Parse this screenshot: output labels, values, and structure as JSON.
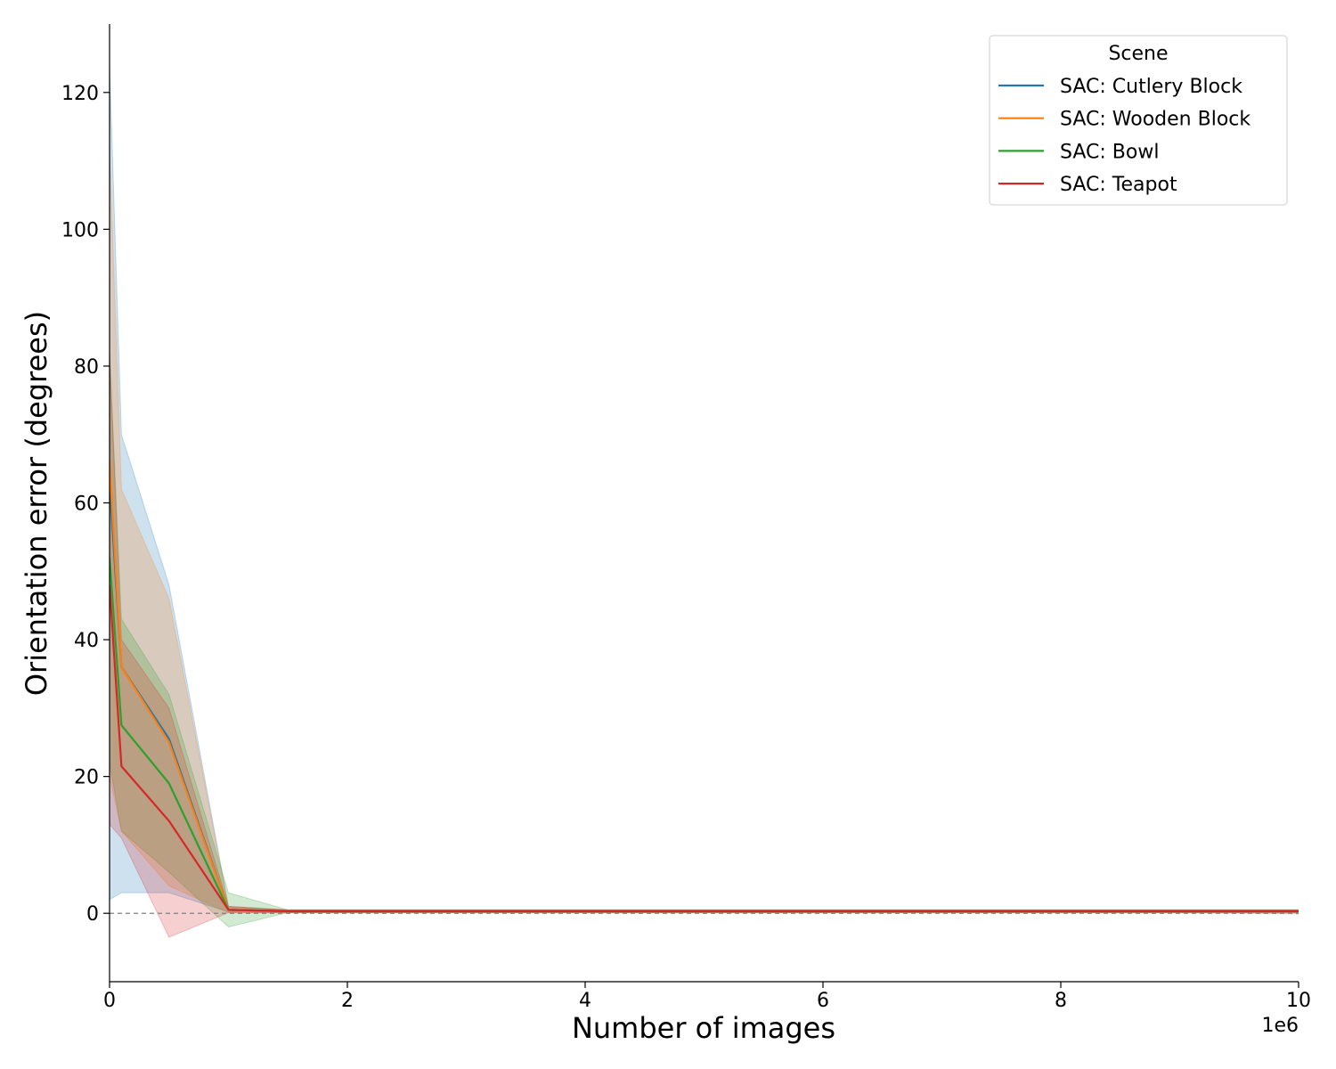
{
  "chart_data": {
    "type": "line",
    "title": "",
    "xlabel": "Number of images",
    "ylabel": "Orientation error (degrees)",
    "x_offset_label": "1e6",
    "xlim": [
      0,
      10
    ],
    "ylim": [
      -10,
      130
    ],
    "x_ticks": [
      0,
      2,
      4,
      6,
      8,
      10
    ],
    "y_ticks": [
      0,
      20,
      40,
      60,
      80,
      100,
      120
    ],
    "reference_line": 0,
    "grid": false,
    "legend": {
      "title": "Scene",
      "position": "top-right"
    },
    "series": [
      {
        "name": "SAC: Cutlery Block",
        "color": "#1f77b4",
        "x": [
          0,
          0.1,
          0.5,
          1,
          1.5,
          2,
          3,
          4,
          5,
          6,
          7,
          8,
          9,
          10
        ],
        "y": [
          63,
          36,
          25.5,
          0.5,
          0.3,
          0.3,
          0.3,
          0.3,
          0.3,
          0.3,
          0.3,
          0.3,
          0.3,
          0.3
        ],
        "lower": [
          2,
          3,
          3,
          0.2,
          0.1,
          0.1,
          0.1,
          0.1,
          0.1,
          0.1,
          0.1,
          0.1,
          0.1,
          0.1
        ],
        "upper": [
          124,
          70,
          48,
          1,
          0.5,
          0.5,
          0.5,
          0.5,
          0.5,
          0.5,
          0.5,
          0.5,
          0.5,
          0.5
        ]
      },
      {
        "name": "SAC: Wooden Block",
        "color": "#ff7f0e",
        "x": [
          0,
          0.1,
          0.5,
          1,
          1.5,
          2,
          3,
          4,
          5,
          6,
          7,
          8,
          9,
          10
        ],
        "y": [
          66,
          36,
          25,
          0.5,
          0.3,
          0.3,
          0.3,
          0.3,
          0.3,
          0.3,
          0.3,
          0.3,
          0.3,
          0.3
        ],
        "lower": [
          20,
          12,
          4,
          0.1,
          0.1,
          0.1,
          0.1,
          0.1,
          0.1,
          0.1,
          0.1,
          0.1,
          0.1,
          0.1
        ],
        "upper": [
          112,
          62,
          46,
          1,
          0.5,
          0.5,
          0.5,
          0.5,
          0.5,
          0.5,
          0.5,
          0.5,
          0.5,
          0.5
        ]
      },
      {
        "name": "SAC: Bowl",
        "color": "#2ca02c",
        "x": [
          0,
          0.1,
          0.5,
          1,
          1.5,
          2,
          3,
          4,
          5,
          6,
          7,
          8,
          9,
          10
        ],
        "y": [
          52,
          27.5,
          19,
          0.5,
          0.3,
          0.3,
          0.3,
          0.3,
          0.3,
          0.3,
          0.3,
          0.3,
          0.3,
          0.3
        ],
        "lower": [
          22,
          12,
          6,
          -2,
          0.1,
          0.1,
          0.1,
          0.1,
          0.1,
          0.1,
          0.1,
          0.1,
          0.1,
          -0.1
        ],
        "upper": [
          82,
          43,
          32,
          3,
          0.5,
          0.5,
          0.5,
          0.5,
          0.5,
          0.5,
          0.5,
          0.5,
          0.5,
          0.5
        ]
      },
      {
        "name": "SAC: Teapot",
        "color": "#d62728",
        "x": [
          0,
          0.1,
          0.5,
          1,
          1.5,
          2,
          3,
          4,
          5,
          6,
          7,
          8,
          9,
          10
        ],
        "y": [
          48,
          21.5,
          13.5,
          0.5,
          0.3,
          0.3,
          0.3,
          0.3,
          0.3,
          0.3,
          0.3,
          0.3,
          0.3,
          0.3
        ],
        "lower": [
          13,
          11,
          -3.5,
          0.1,
          0.1,
          0.1,
          0.1,
          0.1,
          0.1,
          0.1,
          0.1,
          0.1,
          0.1,
          0.1
        ],
        "upper": [
          82,
          40,
          30,
          1,
          0.5,
          0.5,
          0.5,
          0.5,
          0.5,
          0.5,
          0.5,
          0.5,
          0.5,
          0.5
        ]
      }
    ]
  }
}
